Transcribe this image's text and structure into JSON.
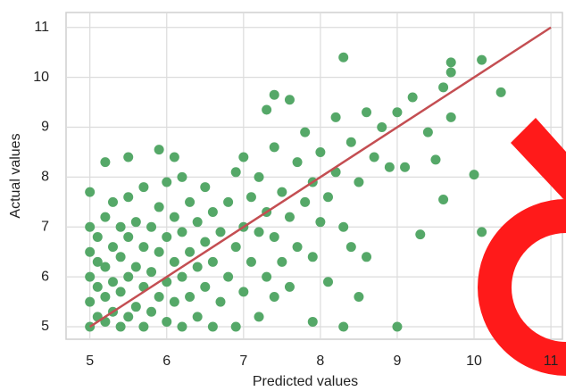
{
  "chart_data": {
    "type": "scatter",
    "xlabel": "Predicted values",
    "ylabel": "Actual values",
    "color": "#55a868",
    "x": [
      5,
      5,
      5,
      5,
      5,
      5.1,
      5.1,
      5.1,
      5.1,
      5.2,
      5.2,
      5.2,
      5.2,
      5.3,
      5.3,
      5.3,
      5.3,
      5.4,
      5.4,
      5.4,
      5.4,
      5.5,
      5.5,
      5.5,
      5.5,
      5.6,
      5.6,
      5.6,
      5.7,
      5.7,
      5.7,
      5.7,
      5.8,
      5.8,
      5.8,
      5.9,
      5.9,
      5.9,
      6.0,
      6.0,
      6.0,
      6.0,
      6.1,
      6.1,
      6.1,
      6.2,
      6.2,
      6.2,
      6.2,
      6.3,
      6.3,
      6.3,
      6.4,
      6.4,
      6.4,
      6.5,
      6.5,
      6.5,
      6.6,
      6.6,
      6.6,
      6.7,
      6.7,
      6.8,
      6.8,
      6.9,
      6.9,
      6.9,
      7.0,
      7.0,
      7.0,
      7.1,
      7.1,
      7.2,
      7.2,
      7.2,
      7.3,
      7.3,
      7.3,
      7.4,
      7.4,
      7.4,
      7.5,
      7.5,
      7.6,
      7.6,
      7.6,
      7.7,
      7.7,
      7.8,
      7.8,
      7.9,
      7.9,
      7.9,
      8.0,
      8.0,
      8.1,
      8.1,
      8.2,
      8.2,
      8.3,
      8.3,
      8.3,
      8.4,
      8.4,
      8.5,
      8.5,
      8.6,
      8.6,
      8.7,
      8.8,
      8.9,
      9.0,
      9.0,
      9.1,
      9.2,
      9.3,
      9.4,
      9.5,
      9.6,
      9.6,
      9.7,
      9.7,
      9.7,
      10.0,
      10.1,
      10.1,
      10.35,
      5.0,
      5.2,
      5.5,
      5.9,
      6.1,
      7.4
    ],
    "y": [
      5,
      5.5,
      6,
      6.5,
      7,
      5.2,
      5.8,
      6.3,
      6.8,
      5.1,
      5.6,
      6.2,
      7.2,
      5.3,
      5.9,
      6.6,
      7.5,
      5,
      5.7,
      6.4,
      7.0,
      5.2,
      6.0,
      6.8,
      7.6,
      5.4,
      6.2,
      7.1,
      5,
      5.8,
      6.6,
      7.8,
      5.3,
      6.1,
      7.0,
      5.6,
      6.5,
      7.4,
      5.1,
      5.9,
      6.8,
      7.9,
      5.5,
      6.3,
      7.2,
      5,
      6.0,
      6.9,
      8.0,
      5.6,
      6.5,
      7.5,
      5.2,
      6.2,
      7.1,
      5.8,
      6.7,
      7.8,
      5,
      6.3,
      7.3,
      5.5,
      6.9,
      6.0,
      7.5,
      5,
      6.6,
      8.1,
      5.7,
      7.0,
      8.4,
      6.3,
      7.6,
      5.2,
      6.9,
      8.0,
      6.0,
      7.3,
      9.35,
      5.6,
      6.8,
      8.6,
      6.3,
      7.7,
      5.8,
      7.2,
      9.55,
      6.6,
      8.3,
      7.5,
      8.9,
      5.1,
      6.4,
      7.9,
      7.1,
      8.5,
      5.9,
      7.6,
      8.1,
      9.2,
      5,
      7.0,
      10.4,
      6.6,
      8.7,
      5.6,
      7.9,
      6.4,
      9.3,
      8.4,
      9.0,
      8.2,
      5,
      9.3,
      8.2,
      9.6,
      6.85,
      8.9,
      8.35,
      7.55,
      9.8,
      9.2,
      10.3,
      10.1,
      8.05,
      6.9,
      10.35,
      9.7,
      7.7,
      8.3,
      8.4,
      8.55,
      8.4,
      9.65
    ],
    "reference_line": {
      "x": [
        5,
        11
      ],
      "y": [
        5,
        11
      ],
      "color": "#c44e52"
    },
    "xlim": [
      4.69,
      11.15
    ],
    "ylim": [
      4.75,
      11.3
    ],
    "xticks": [
      5,
      6,
      7,
      8,
      9,
      10,
      11
    ],
    "yticks": [
      5,
      6,
      7,
      8,
      9,
      10,
      11
    ],
    "grid": true
  }
}
